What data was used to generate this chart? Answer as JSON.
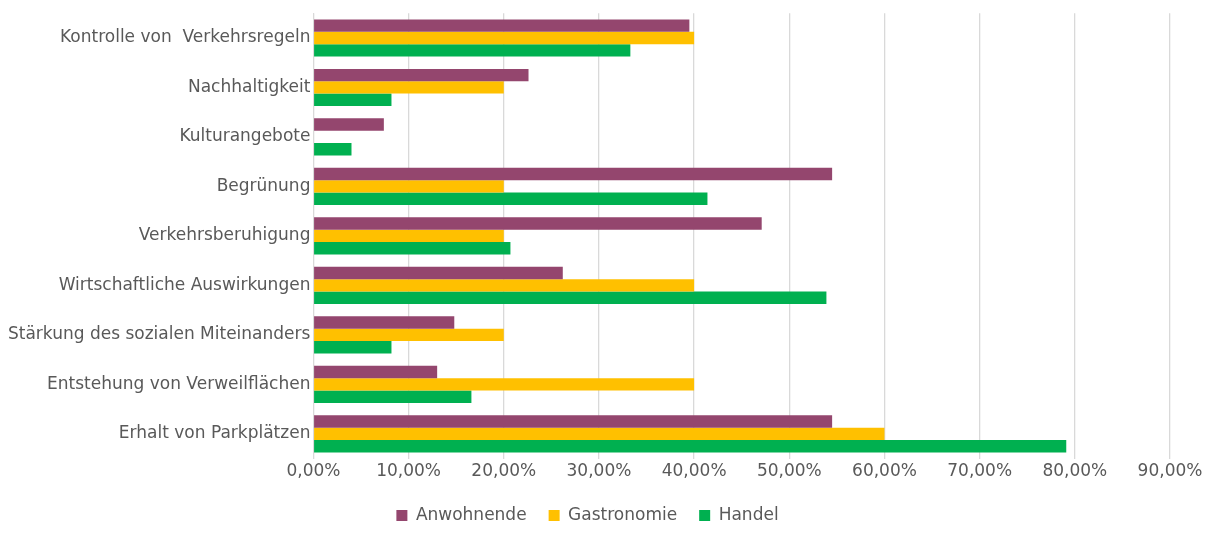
{
  "chart_data": {
    "type": "bar",
    "orientation": "horizontal",
    "categories": [
      "Kontrolle von  Verkehrsregeln",
      "Nachhaltigkeit",
      "Kulturangebote",
      "Begrünung",
      "Verkehrsberuhigung",
      "Wirtschaftliche Auswirkungen",
      "Stärkung des sozialen Miteinanders",
      "Entstehung von Verweilflächen",
      "Erhalt von Parkplätzen"
    ],
    "series": [
      {
        "name": "Anwohnende",
        "color": "#94466e",
        "values": [
          39.5,
          22.6,
          7.4,
          54.5,
          47.1,
          26.2,
          14.8,
          13.0,
          54.5
        ]
      },
      {
        "name": "Gastronomie",
        "color": "#ffc000",
        "values": [
          40,
          20,
          0,
          20,
          20,
          40,
          20,
          40,
          60
        ]
      },
      {
        "name": "Handel",
        "color": "#00b050",
        "values": [
          33.3,
          8.2,
          4.0,
          41.4,
          20.7,
          53.9,
          8.2,
          16.6,
          79.1
        ]
      }
    ],
    "xlim": [
      0,
      90
    ],
    "xticks": [
      {
        "value": 0,
        "label": "0,00%"
      },
      {
        "value": 10,
        "label": "10,00%"
      },
      {
        "value": 20,
        "label": "20,00%"
      },
      {
        "value": 30,
        "label": "30,00%"
      },
      {
        "value": 40,
        "label": "40,00%"
      },
      {
        "value": 50,
        "label": "50,00%"
      },
      {
        "value": 60,
        "label": "60,00%"
      },
      {
        "value": 70,
        "label": "70,00%"
      },
      {
        "value": 80,
        "label": "80,00%"
      },
      {
        "value": 90,
        "label": "90,00%"
      }
    ],
    "grid": "x",
    "legend": "bottom"
  }
}
